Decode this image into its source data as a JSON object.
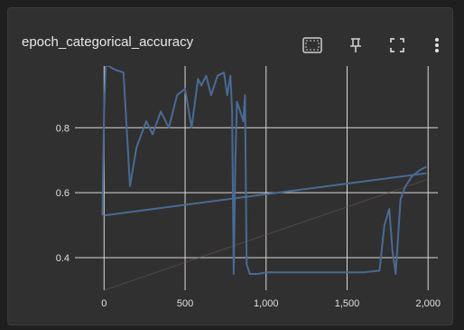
{
  "card": {
    "title": "epoch_categorical_accuracy",
    "toolbar": [
      {
        "name": "data-selection-icon"
      },
      {
        "name": "pin-icon"
      },
      {
        "name": "fullscreen-icon"
      },
      {
        "name": "more-vert-icon"
      }
    ]
  },
  "colors": {
    "page_background": "#1f1f1f",
    "card_background": "#303030",
    "grid": "#d8d8d8",
    "series": "#4a6a94",
    "ghost": "#7a5a5a"
  },
  "chart_data": {
    "type": "line",
    "title": "epoch_categorical_accuracy",
    "xlabel": "",
    "ylabel": "",
    "xlim": [
      -180,
      2060
    ],
    "ylim": [
      0.3,
      0.99
    ],
    "xticks": [
      0,
      500,
      1000,
      1500,
      2000
    ],
    "xtick_labels": [
      "0",
      "500",
      "1,000",
      "1,500",
      "2,000"
    ],
    "yticks": [
      0.4,
      0.6,
      0.8
    ],
    "ytick_labels": [
      "0.4",
      "0.6",
      "0.8"
    ],
    "grid": true,
    "series": [
      {
        "color": "#4a6a94",
        "x": [
          -10,
          0,
          10,
          30,
          60,
          120,
          160,
          200,
          260,
          300,
          350,
          400,
          450,
          500,
          540,
          580,
          600,
          630,
          660,
          700,
          740,
          760,
          780,
          790,
          800,
          810,
          820,
          840,
          860,
          870,
          880,
          900,
          950,
          1000,
          1100,
          1200,
          1300,
          1400,
          1500,
          1600,
          1700,
          1730,
          1760,
          1780,
          1800,
          1830,
          1860,
          1900,
          1950,
          1990
        ],
        "y": [
          0.53,
          0.85,
          0.99,
          0.99,
          0.98,
          0.97,
          0.62,
          0.74,
          0.82,
          0.78,
          0.85,
          0.8,
          0.9,
          0.92,
          0.8,
          0.95,
          0.93,
          0.96,
          0.9,
          0.96,
          0.97,
          0.9,
          0.96,
          0.85,
          0.35,
          0.7,
          0.88,
          0.85,
          0.82,
          0.9,
          0.38,
          0.35,
          0.35,
          0.355,
          0.355,
          0.355,
          0.355,
          0.355,
          0.355,
          0.355,
          0.36,
          0.5,
          0.55,
          0.42,
          0.35,
          0.58,
          0.62,
          0.65,
          0.67,
          0.68
        ]
      },
      {
        "color": "#4a6a94",
        "x": [
          0,
          1990
        ],
        "y": [
          0.53,
          0.66
        ]
      }
    ]
  }
}
